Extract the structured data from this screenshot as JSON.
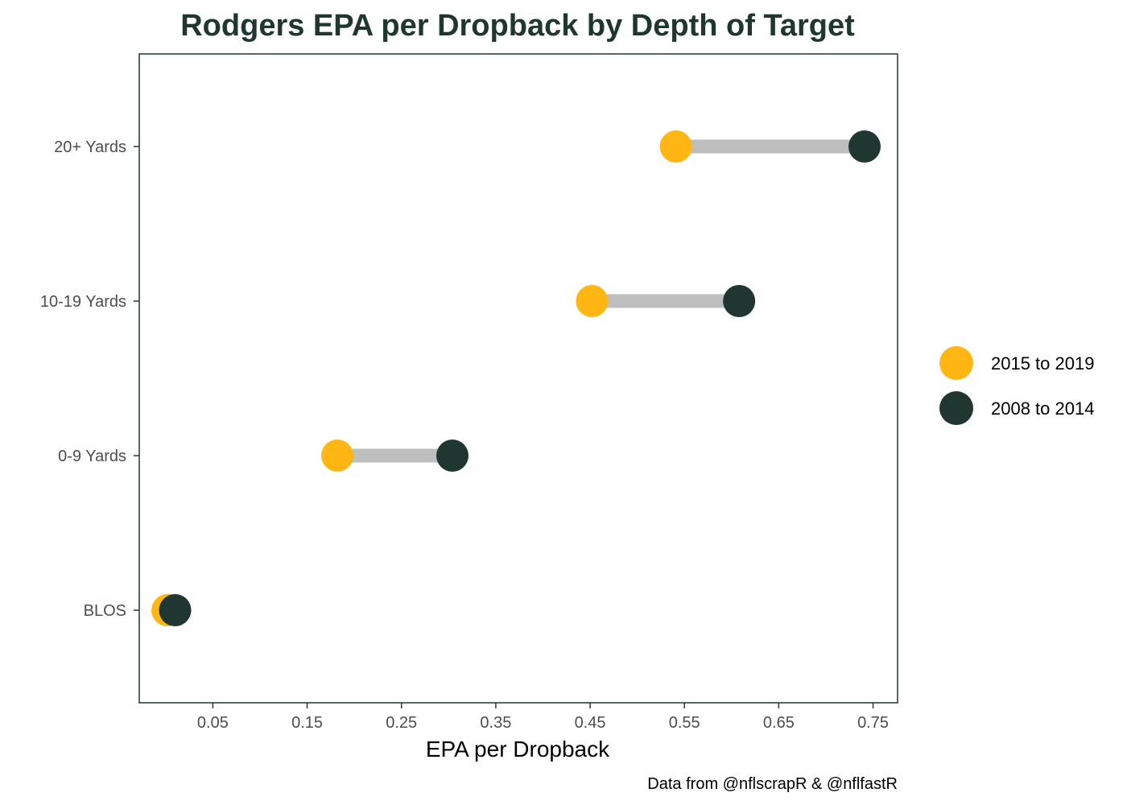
{
  "chart_data": {
    "type": "dumbbell",
    "title": "Rodgers EPA per Dropback by Depth of Target",
    "xlabel": "EPA per Dropback",
    "ylabel": "",
    "caption": "Data from @nflscrapR & @nflfastR",
    "xlim": [
      -0.028,
      0.776
    ],
    "x_ticks": [
      0.05,
      0.15,
      0.25,
      0.35,
      0.45,
      0.55,
      0.65,
      0.75
    ],
    "x_tick_labels": [
      "0.05",
      "0.15",
      "0.25",
      "0.35",
      "0.45",
      "0.55",
      "0.65",
      "0.75"
    ],
    "categories": [
      "20+ Yards",
      "10-19 Yards",
      "0-9 Yards",
      "BLOS"
    ],
    "series": [
      {
        "name": "2015 to 2019",
        "color": "#FFB612",
        "values": [
          0.541,
          0.452,
          0.182,
          0.002
        ]
      },
      {
        "name": "2008 to 2014",
        "color": "#203731",
        "values": [
          0.741,
          0.608,
          0.304,
          0.01
        ]
      }
    ],
    "connector_color": "#BEBEBE",
    "grid": false,
    "legend_position": "right"
  }
}
